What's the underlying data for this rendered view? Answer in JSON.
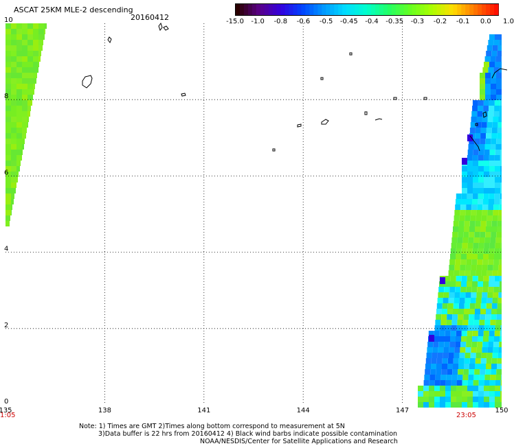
{
  "header": {
    "title": "ASCAT 25KM MLE-2 descending",
    "date": "20160412"
  },
  "colorbar": {
    "labels": [
      "-15.0",
      "-1.0",
      "-0.8",
      "-0.6",
      "-0.5",
      "-0.45",
      "-0.4",
      "-0.35",
      "-0.3",
      "-0.2",
      "-0.1",
      "0.0",
      "1.0"
    ],
    "colors": [
      "#2a0000",
      "#5a0088",
      "#3300dd",
      "#0044ff",
      "#0099ff",
      "#00ddff",
      "#00ffcc",
      "#22ff66",
      "#66ff22",
      "#aaff00",
      "#ffdd00",
      "#ff7700",
      "#ff1100"
    ]
  },
  "map": {
    "lon_ticks": [
      "135",
      "138",
      "141",
      "144",
      "147",
      "150"
    ],
    "lat_ticks": [
      "0",
      "2",
      "4",
      "6",
      "8",
      "10"
    ],
    "lon_range": [
      135,
      150
    ],
    "lat_range": [
      0,
      10
    ],
    "gridlines": "dotted"
  },
  "times": {
    "left": "1:05",
    "right": "23:05"
  },
  "notes": {
    "line1": "Note: 1) Times are GMT 2)Times along bottom correspond to measurement at 5N",
    "line2": "3)Data buffer is 22 hrs from 20160412 4) Black wind barbs indicate possible contamination",
    "line3": "NOAA/NESDIS/Center for Satellite Applications and Research"
  }
}
